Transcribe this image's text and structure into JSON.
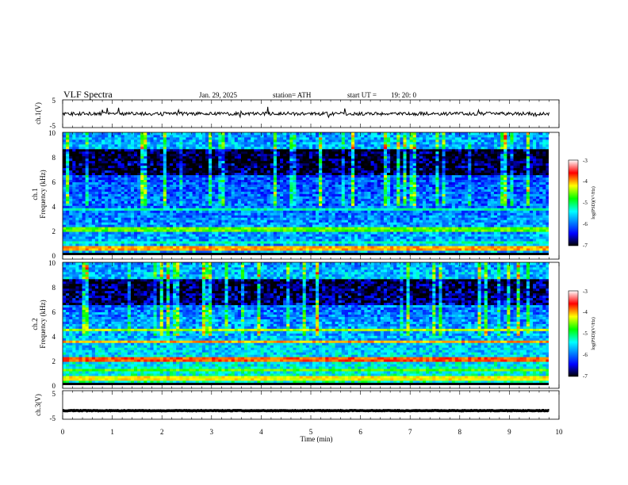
{
  "header": {
    "title": "VLF  Spectra",
    "date": "Jan. 29, 2025",
    "station": "station= ATH",
    "start_label": "start  UT  =",
    "start_time": "19: 20: 0"
  },
  "chart_data": [
    {
      "type": "line",
      "name": "ch1-waveform",
      "ylabel": "ch.1(V)",
      "ylim": [
        -5,
        5
      ],
      "yticks": [
        "5",
        "-5"
      ],
      "xlim": [
        0,
        10
      ],
      "baseline_v": 0,
      "noise_v": 0.6,
      "samples": 600
    },
    {
      "type": "heatmap",
      "name": "ch1-spectrogram",
      "ylabel": "ch.1\nFrequency  (kHz)",
      "ylim": [
        0,
        10
      ],
      "yticks": [
        "0",
        "2",
        "4",
        "6",
        "8",
        "10"
      ],
      "xlim": [
        0,
        9.8
      ],
      "colorbar": {
        "label": "log(PSD)(V²/Hz)",
        "ticks": [
          "-3",
          "-4",
          "-5",
          "-6",
          "-7"
        ],
        "range": [
          -7,
          -3
        ]
      }
    },
    {
      "type": "heatmap",
      "name": "ch2-spectrogram",
      "ylabel": "ch.2\nFrequency  (kHz)",
      "ylim": [
        0,
        10
      ],
      "yticks": [
        "0",
        "2",
        "4",
        "6",
        "8",
        "10"
      ],
      "xlim": [
        0,
        9.8
      ],
      "colorbar": {
        "label": "log(PSD)(V²/Hz)",
        "ticks": [
          "-3",
          "-4",
          "-5",
          "-6",
          "-7"
        ],
        "range": [
          -7,
          -3
        ]
      }
    },
    {
      "type": "line",
      "name": "ch3-waveform",
      "ylabel": "ch.3(V)",
      "ylim": [
        -5,
        5
      ],
      "yticks": [
        "5",
        "-5"
      ],
      "xlim": [
        0,
        10
      ],
      "baseline_v": -2,
      "noise_v": 0.1,
      "samples": 600
    }
  ],
  "xaxis": {
    "label": "Time  (min)",
    "ticks": [
      "0",
      "1",
      "2",
      "3",
      "4",
      "5",
      "6",
      "7",
      "8",
      "9",
      "10"
    ],
    "range": [
      0,
      10
    ]
  },
  "colors": {
    "trace": "#000000",
    "colormap": [
      "#000000",
      "#0000ff",
      "#00ffff",
      "#00ff00",
      "#ffff00",
      "#ff0000",
      "#ffffff"
    ]
  }
}
